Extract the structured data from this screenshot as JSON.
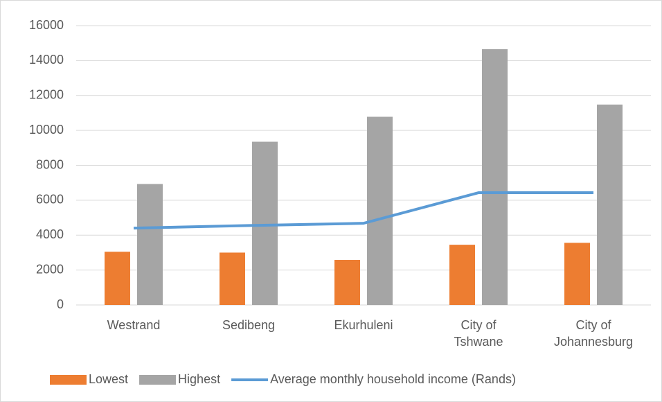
{
  "chart_data": {
    "type": "bar",
    "categories": [
      "Westrand",
      "Sedibeng",
      "Ekurhuleni",
      "City of Tshwane",
      "City of Johannesburg"
    ],
    "series": [
      {
        "name": "Lowest",
        "color": "#ed7d31",
        "values": [
          3050,
          3000,
          2580,
          3450,
          3560
        ]
      },
      {
        "name": "Highest",
        "color": "#a5a5a5",
        "values": [
          6930,
          9350,
          10780,
          14650,
          11480
        ]
      },
      {
        "name": "Average monthly household income (Rands)",
        "color": "#5b9bd5",
        "type": "line",
        "values": [
          4400,
          4550,
          4680,
          6430,
          6430
        ]
      }
    ],
    "ylim": [
      0,
      16000
    ],
    "yticks": [
      0,
      2000,
      4000,
      6000,
      8000,
      10000,
      12000,
      14000,
      16000
    ],
    "grid": true,
    "legend": "bottom"
  }
}
